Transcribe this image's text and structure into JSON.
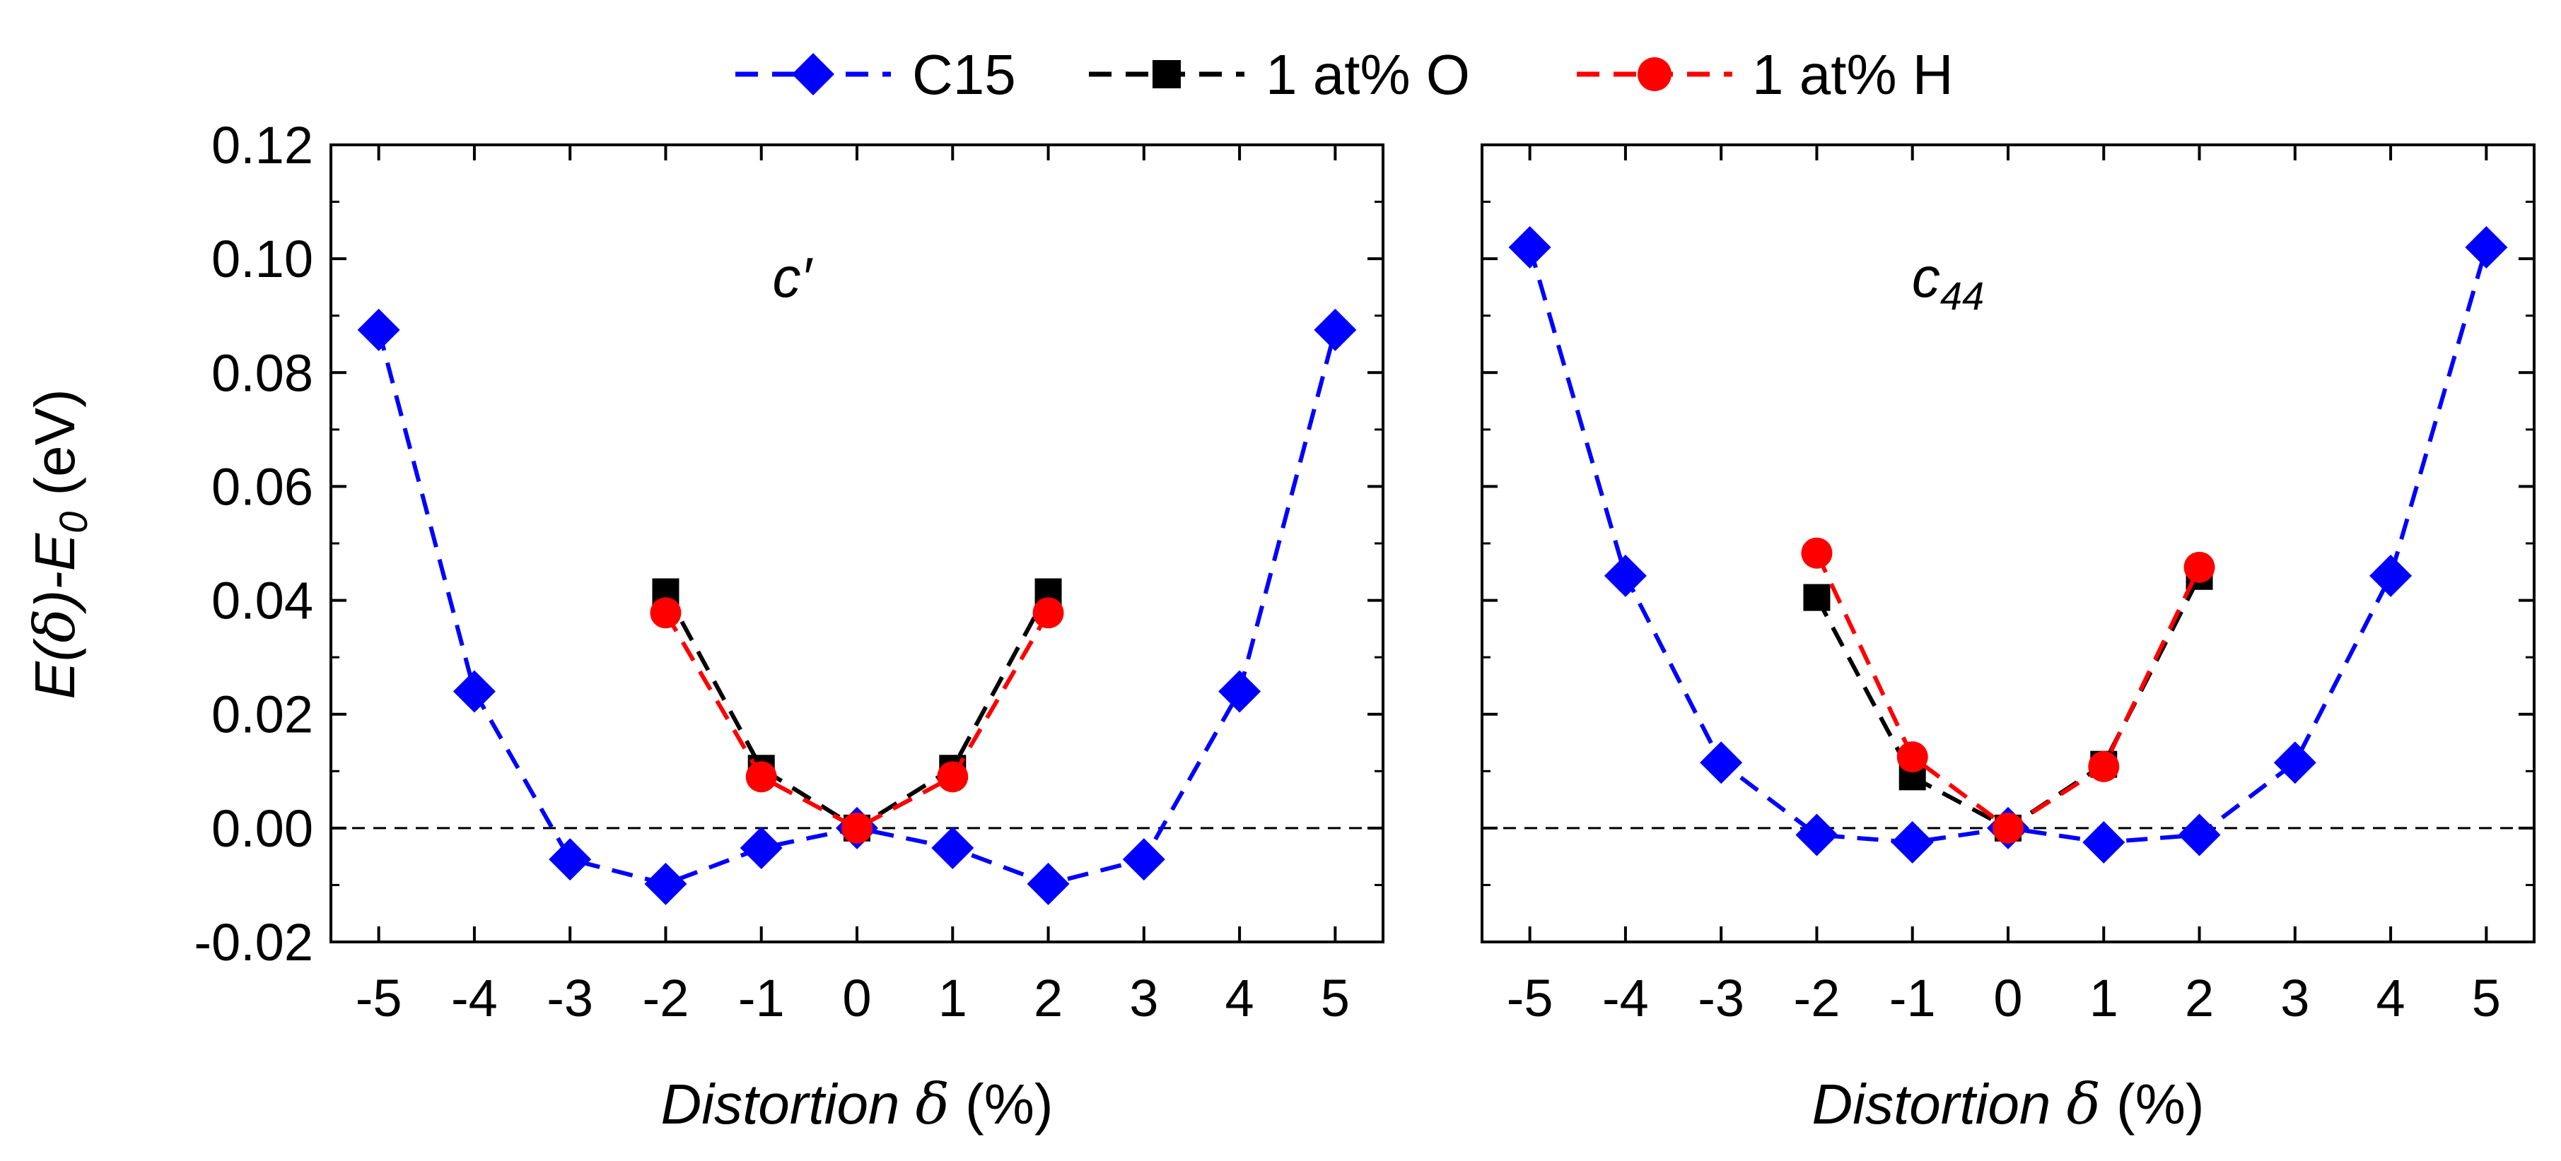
{
  "legend": [
    {
      "name": "C15",
      "color": "#0000ff",
      "marker": "diamond"
    },
    {
      "name": "1 at% O",
      "color": "#000000",
      "marker": "square"
    },
    {
      "name": "1 at% H",
      "color": "#ff0000",
      "marker": "circle"
    }
  ],
  "y_axis_label": {
    "prefix": "E(",
    "delta": "δ",
    "mid": ")-E",
    "sub": "0",
    "suffix": " (eV)"
  },
  "x_axis_label": {
    "italic": "Distortion ",
    "delta": "δ",
    "suffix": " (%)"
  },
  "chart_data": [
    {
      "type": "line",
      "panel_label": "c′",
      "xlim": [
        -5.5,
        5.5
      ],
      "ylim": [
        -0.02,
        0.12
      ],
      "x_ticks": [
        -5,
        -4,
        -3,
        -2,
        -1,
        0,
        1,
        2,
        3,
        4,
        5
      ],
      "x_tick_labels": [
        "-5",
        "-4",
        "-3",
        "-2",
        "-1",
        "0",
        "1",
        "2",
        "3",
        "4",
        "5"
      ],
      "y_ticks": [
        -0.02,
        0.0,
        0.02,
        0.04,
        0.06,
        0.08,
        0.1,
        0.12
      ],
      "y_tick_labels": [
        "-0.02",
        "0.00",
        "0.02",
        "0.04",
        "0.06",
        "0.08",
        "0.10",
        "0.12"
      ],
      "reference_line_y": 0,
      "series": [
        {
          "name": "C15",
          "color": "#0000ff",
          "marker": "diamond",
          "x": [
            -5,
            -4,
            -3,
            -2,
            -1,
            0,
            1,
            2,
            3,
            4,
            5
          ],
          "y": [
            0.0875,
            0.024,
            -0.0055,
            -0.0098,
            -0.0035,
            0.0,
            -0.0035,
            -0.0098,
            -0.0055,
            0.024,
            0.0875
          ]
        },
        {
          "name": "1 at% O",
          "color": "#000000",
          "marker": "square",
          "x": [
            -2,
            -1,
            0,
            1,
            2
          ],
          "y": [
            0.0415,
            0.0105,
            0.0,
            0.0105,
            0.0415
          ]
        },
        {
          "name": "1 at% H",
          "color": "#ff0000",
          "marker": "circle",
          "x": [
            -2,
            -1,
            0,
            1,
            2
          ],
          "y": [
            0.0378,
            0.009,
            0.0,
            0.009,
            0.0378
          ]
        }
      ]
    },
    {
      "type": "line",
      "panel_label_main": "c",
      "panel_label_sub": "44",
      "xlim": [
        -5.5,
        5.5
      ],
      "ylim": [
        -0.02,
        0.12
      ],
      "x_ticks": [
        -5,
        -4,
        -3,
        -2,
        -1,
        0,
        1,
        2,
        3,
        4,
        5
      ],
      "x_tick_labels": [
        "-5",
        "-4",
        "-3",
        "-2",
        "-1",
        "0",
        "1",
        "2",
        "3",
        "4",
        "5"
      ],
      "y_ticks": [
        -0.02,
        0.0,
        0.02,
        0.04,
        0.06,
        0.08,
        0.1,
        0.12
      ],
      "y_tick_labels": [],
      "reference_line_y": 0,
      "series": [
        {
          "name": "C15",
          "color": "#0000ff",
          "marker": "diamond",
          "x": [
            -5,
            -4,
            -3,
            -2,
            -1,
            0,
            1,
            2,
            3,
            4,
            5
          ],
          "y": [
            0.102,
            0.0443,
            0.0115,
            -0.0012,
            -0.0025,
            0.0,
            -0.0025,
            -0.0012,
            0.0115,
            0.0443,
            0.102
          ]
        },
        {
          "name": "1 at% O",
          "color": "#000000",
          "marker": "square",
          "x": [
            -2,
            -1,
            0,
            1,
            2
          ],
          "y": [
            0.0405,
            0.009,
            0.0,
            0.0112,
            0.0442
          ]
        },
        {
          "name": "1 at% H",
          "color": "#ff0000",
          "marker": "circle",
          "x": [
            -2,
            -1,
            0,
            1,
            2
          ],
          "y": [
            0.0483,
            0.0125,
            0.0,
            0.0108,
            0.0458
          ]
        }
      ]
    }
  ]
}
